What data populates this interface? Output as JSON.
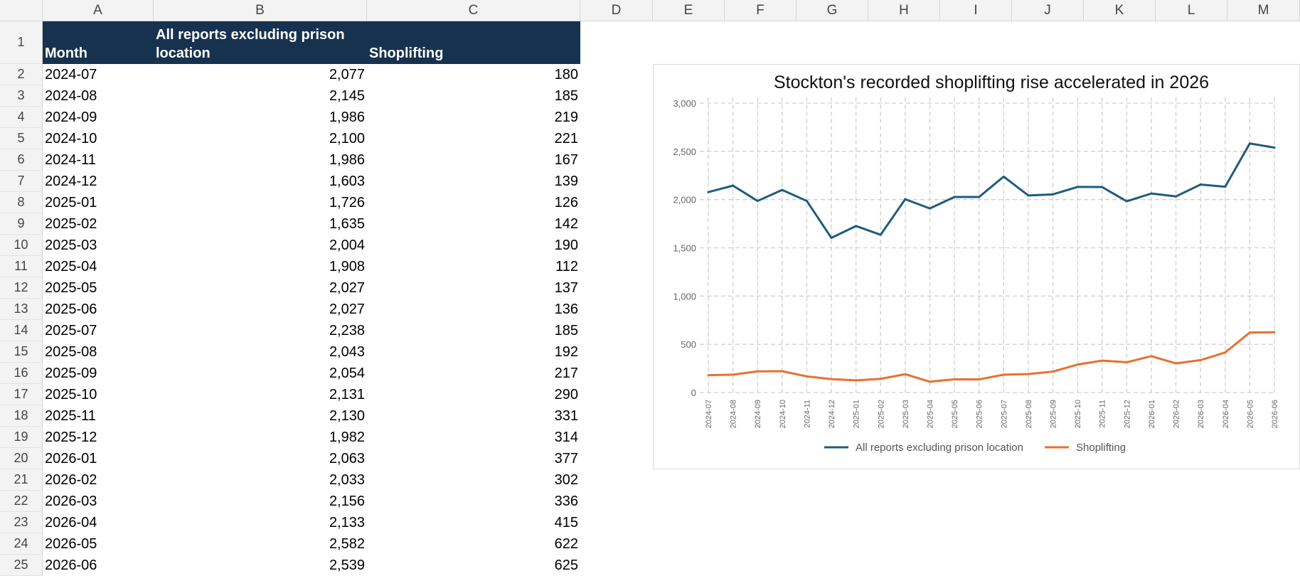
{
  "columns": [
    "A",
    "B",
    "C",
    "D",
    "E",
    "F",
    "G",
    "H",
    "I",
    "J",
    "K",
    "L",
    "M"
  ],
  "header": {
    "month": "Month",
    "all_reports_line1": "All reports excluding prison",
    "all_reports_line2": "location",
    "shoplifting": "Shoplifting"
  },
  "rows": [
    {
      "month": "2024-07",
      "all": "2,077",
      "shop": "180"
    },
    {
      "month": "2024-08",
      "all": "2,145",
      "shop": "185"
    },
    {
      "month": "2024-09",
      "all": "1,986",
      "shop": "219"
    },
    {
      "month": "2024-10",
      "all": "2,100",
      "shop": "221"
    },
    {
      "month": "2024-11",
      "all": "1,986",
      "shop": "167"
    },
    {
      "month": "2024-12",
      "all": "1,603",
      "shop": "139"
    },
    {
      "month": "2025-01",
      "all": "1,726",
      "shop": "126"
    },
    {
      "month": "2025-02",
      "all": "1,635",
      "shop": "142"
    },
    {
      "month": "2025-03",
      "all": "2,004",
      "shop": "190"
    },
    {
      "month": "2025-04",
      "all": "1,908",
      "shop": "112"
    },
    {
      "month": "2025-05",
      "all": "2,027",
      "shop": "137"
    },
    {
      "month": "2025-06",
      "all": "2,027",
      "shop": "136"
    },
    {
      "month": "2025-07",
      "all": "2,238",
      "shop": "185"
    },
    {
      "month": "2025-08",
      "all": "2,043",
      "shop": "192"
    },
    {
      "month": "2025-09",
      "all": "2,054",
      "shop": "217"
    },
    {
      "month": "2025-10",
      "all": "2,131",
      "shop": "290"
    },
    {
      "month": "2025-11",
      "all": "2,130",
      "shop": "331"
    },
    {
      "month": "2025-12",
      "all": "1,982",
      "shop": "314"
    },
    {
      "month": "2026-01",
      "all": "2,063",
      "shop": "377"
    },
    {
      "month": "2026-02",
      "all": "2,033",
      "shop": "302"
    },
    {
      "month": "2026-03",
      "all": "2,156",
      "shop": "336"
    },
    {
      "month": "2026-04",
      "all": "2,133",
      "shop": "415"
    },
    {
      "month": "2026-05",
      "all": "2,582",
      "shop": "622"
    },
    {
      "month": "2026-06",
      "all": "2,539",
      "shop": "625"
    }
  ],
  "chart_data": {
    "type": "line",
    "title": "Stockton's recorded shoplifting rise accelerated in 2026",
    "xlabel": "",
    "ylabel": "",
    "ylim": [
      0,
      3000
    ],
    "yticks": [
      0,
      500,
      1000,
      1500,
      2000,
      2500,
      3000
    ],
    "ytick_labels": [
      "0",
      "500",
      "1,000",
      "1,500",
      "2,000",
      "2,500",
      "3,000"
    ],
    "grid": true,
    "legend_position": "bottom",
    "categories": [
      "2024-07",
      "2024-08",
      "2024-09",
      "2024-10",
      "2024-11",
      "2024-12",
      "2025-01",
      "2025-02",
      "2025-03",
      "2025-04",
      "2025-05",
      "2025-06",
      "2025-07",
      "2025-08",
      "2025-09",
      "2025-10",
      "2025-11",
      "2025-12",
      "2026-01",
      "2026-02",
      "2026-03",
      "2026-04",
      "2026-05",
      "2026-06"
    ],
    "series": [
      {
        "name": "All reports excluding prison location",
        "color": "#1f5c7f",
        "values": [
          2077,
          2145,
          1986,
          2100,
          1986,
          1603,
          1726,
          1635,
          2004,
          1908,
          2027,
          2027,
          2238,
          2043,
          2054,
          2131,
          2130,
          1982,
          2063,
          2033,
          2156,
          2133,
          2582,
          2539
        ]
      },
      {
        "name": "Shoplifting",
        "color": "#e8702f",
        "values": [
          180,
          185,
          219,
          221,
          167,
          139,
          126,
          142,
          190,
          112,
          137,
          136,
          185,
          192,
          217,
          290,
          331,
          314,
          377,
          302,
          336,
          415,
          622,
          625
        ]
      }
    ]
  }
}
